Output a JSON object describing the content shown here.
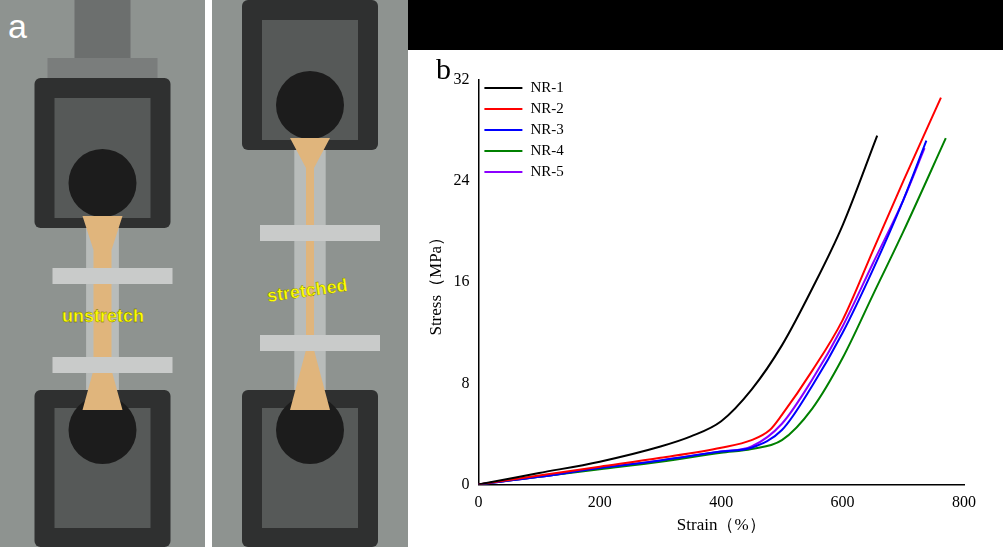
{
  "photo": {
    "panel_label": "a",
    "labels": [
      "unstretch",
      "stretched"
    ]
  },
  "chart_data": {
    "type": "line",
    "panel_label": "b",
    "x_label": "Strain（%）",
    "y_label": "Stress（MPa）",
    "xlim": [
      0,
      800
    ],
    "xticks": [
      0,
      200,
      400,
      600,
      800
    ],
    "ylim": [
      0,
      32
    ],
    "yticks": [
      0,
      8,
      16,
      24,
      32
    ],
    "grid": false,
    "legend": "upper left",
    "series": [
      {
        "name": "NR-1",
        "color": "#000000",
        "x": [
          0,
          100,
          200,
          300,
          350,
          400,
          450,
          500,
          550,
          600,
          657
        ],
        "values": [
          0,
          0.9,
          1.8,
          3.0,
          3.8,
          5.0,
          7.5,
          11.0,
          15.5,
          20.5,
          27.6
        ]
      },
      {
        "name": "NR-2",
        "color": "#ff0000",
        "x": [
          0,
          100,
          200,
          300,
          400,
          450,
          480,
          500,
          550,
          600,
          650,
          700,
          762
        ],
        "values": [
          0,
          0.7,
          1.4,
          2.1,
          2.9,
          3.5,
          4.3,
          5.5,
          9.0,
          13.0,
          18.5,
          24.0,
          30.6
        ]
      },
      {
        "name": "NR-3",
        "color": "#0000ff",
        "x": [
          0,
          100,
          200,
          300,
          400,
          450,
          500,
          550,
          600,
          650,
          700,
          738
        ],
        "values": [
          0,
          0.6,
          1.3,
          1.9,
          2.6,
          2.9,
          4.3,
          7.8,
          12.0,
          17.0,
          22.5,
          27.2
        ]
      },
      {
        "name": "NR-4",
        "color": "#008000",
        "x": [
          0,
          100,
          200,
          300,
          400,
          450,
          500,
          550,
          600,
          650,
          700,
          770
        ],
        "values": [
          0,
          0.6,
          1.2,
          1.8,
          2.5,
          2.8,
          3.5,
          6.0,
          10.0,
          15.0,
          20.0,
          27.4
        ]
      },
      {
        "name": "NR-5",
        "color": "#8b00ff",
        "x": [
          0,
          100,
          200,
          300,
          400,
          450,
          500,
          550,
          600,
          650,
          700,
          735
        ],
        "values": [
          0,
          0.6,
          1.3,
          1.9,
          2.6,
          3.0,
          4.8,
          8.3,
          12.5,
          17.5,
          22.5,
          26.6
        ]
      }
    ]
  }
}
